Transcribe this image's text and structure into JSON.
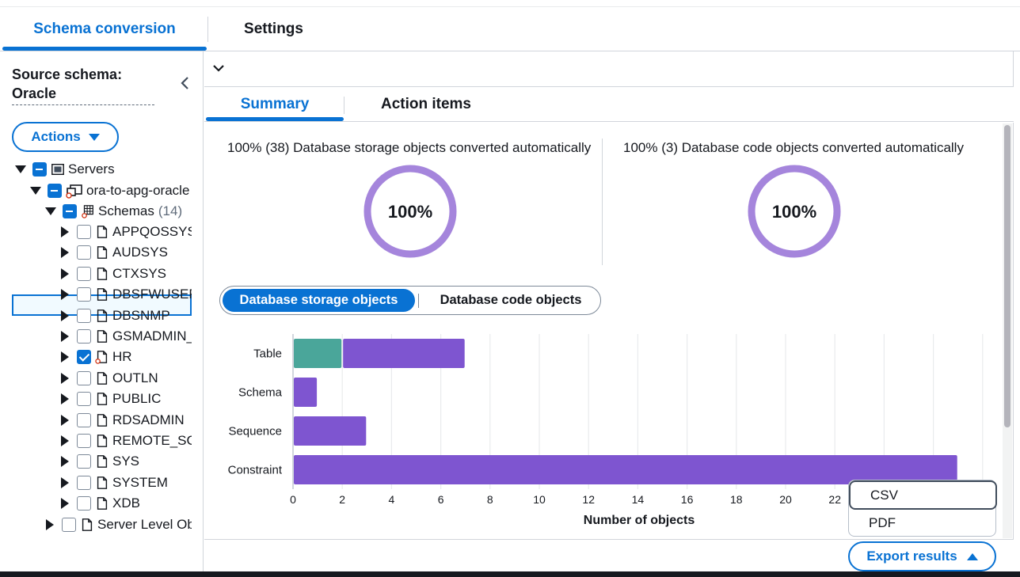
{
  "tabs": [
    {
      "label": "Schema conversion"
    },
    {
      "label": "Settings"
    }
  ],
  "sidebar": {
    "source_title": "Source schema:",
    "source_engine": "Oracle",
    "actions_label": "Actions",
    "tree": {
      "servers": "Servers",
      "server": "ora-to-apg-oracle",
      "schemas_label": "Schemas",
      "schemas_count": "(14)",
      "schemas": [
        "APPQOSSYS",
        "AUDSYS",
        "CTXSYS",
        "DBSFWUSER",
        "DBSNMP",
        "GSMADMIN_",
        "HR",
        "OUTLN",
        "PUBLIC",
        "RDSADMIN",
        "REMOTE_SCI",
        "SYS",
        "SYSTEM",
        "XDB"
      ],
      "selected_schema": "HR",
      "server_level": "Server Level Ob"
    }
  },
  "subtabs": [
    {
      "label": "Summary"
    },
    {
      "label": "Action items"
    }
  ],
  "summary": {
    "storage_title": "100% (38) Database storage objects converted automatically",
    "storage_percent": "100%",
    "storage_fraction": 1.0,
    "code_title": "100% (3) Database code objects converted automatically",
    "code_percent": "100%",
    "code_fraction": 1.0,
    "donut_color": "#a585dc"
  },
  "segmented": {
    "options": [
      "Database storage objects",
      "Database code objects"
    ],
    "selected": "Database storage objects"
  },
  "chart_data": {
    "type": "bar",
    "orientation": "horizontal",
    "stacked": true,
    "categories": [
      "Table",
      "Schema",
      "Sequence",
      "Constraint"
    ],
    "series": [
      {
        "values": [
          2,
          0,
          0,
          0
        ],
        "color": "#4aa69a"
      },
      {
        "values": [
          5,
          1,
          3,
          27
        ],
        "color": "#7e55d0"
      }
    ],
    "xlabel": "Number of objects",
    "xlim": [
      0,
      28
    ],
    "xticks": [
      0,
      2,
      4,
      6,
      8,
      10,
      12,
      14,
      16,
      18,
      20,
      22
    ],
    "grid": true
  },
  "export": {
    "menu": [
      "CSV",
      "PDF"
    ],
    "button_label": "Export results"
  }
}
